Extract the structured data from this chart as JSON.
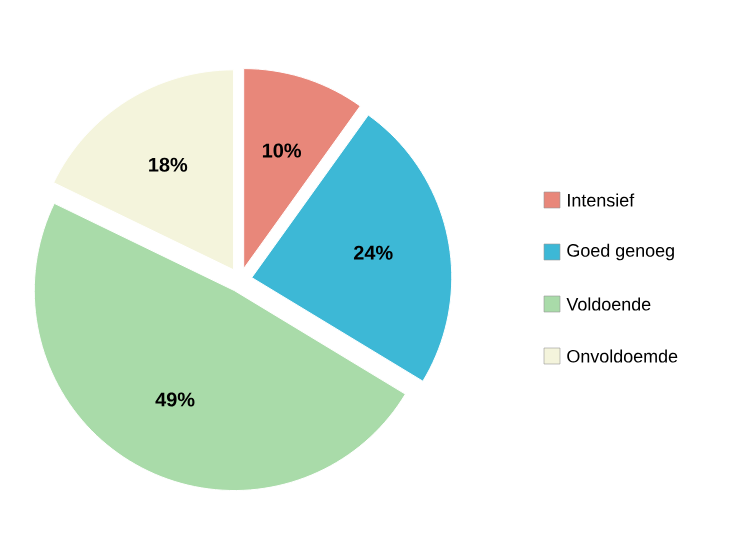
{
  "chart_data": {
    "type": "pie",
    "categories": [
      "Intensief",
      "Goed genoeg",
      "Voldoende",
      "Onvoldoemde"
    ],
    "values": [
      10,
      24,
      49,
      18
    ],
    "colors": [
      "#e8877a",
      "#3db8d6",
      "#a9dba9",
      "#f4f4dc"
    ],
    "value_labels": [
      "10%",
      "24%",
      "49%",
      "18%"
    ],
    "legend": "right"
  }
}
